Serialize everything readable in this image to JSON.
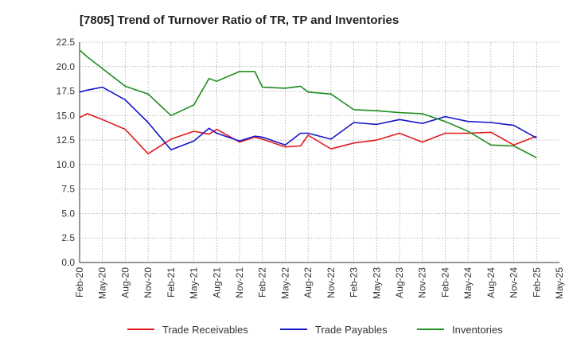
{
  "chart_data": {
    "type": "line",
    "title": "[7805]  Trend of Turnover Ratio of TR, TP and Inventories",
    "xlabel": "",
    "ylabel": "",
    "ylim": [
      0,
      22.5
    ],
    "yticks": [
      "0.0",
      "2.5",
      "5.0",
      "7.5",
      "10.0",
      "12.5",
      "15.0",
      "17.5",
      "20.0",
      "22.5"
    ],
    "xtick_labels": [
      "Feb-20",
      "May-20",
      "Aug-20",
      "Nov-20",
      "Feb-21",
      "May-21",
      "Aug-21",
      "Nov-21",
      "Feb-22",
      "May-22",
      "Aug-22",
      "Nov-22",
      "Feb-23",
      "May-23",
      "Aug-23",
      "Nov-23",
      "Feb-24",
      "May-24",
      "Aug-24",
      "Nov-24",
      "Feb-25",
      "May-25"
    ],
    "x": [
      "Feb-20",
      "Mar-20",
      "May-20",
      "Aug-20",
      "Nov-20",
      "Feb-21",
      "May-21",
      "Jul-21",
      "Aug-21",
      "Nov-21",
      "Jan-22",
      "Feb-22",
      "May-22",
      "Jul-22",
      "Aug-22",
      "Nov-22",
      "Feb-23",
      "May-23",
      "Aug-23",
      "Nov-23",
      "Feb-24",
      "May-24",
      "Aug-24",
      "Nov-24",
      "Feb-25"
    ],
    "grid": true,
    "legend_position": "bottom",
    "series": [
      {
        "name": "Trade Receivables",
        "color": "#e31a1c",
        "values": [
          14.8,
          15.2,
          14.6,
          13.6,
          11.1,
          12.6,
          13.4,
          13.1,
          13.6,
          12.3,
          12.8,
          12.6,
          11.8,
          11.9,
          13.0,
          11.6,
          12.2,
          12.5,
          13.2,
          12.3,
          13.2,
          13.2,
          13.3,
          12.0,
          12.9
        ]
      },
      {
        "name": "Trade Payables",
        "color": "#1515cc",
        "values": [
          17.4,
          17.6,
          17.9,
          16.6,
          14.3,
          11.5,
          12.4,
          13.7,
          13.2,
          12.4,
          12.9,
          12.8,
          12.0,
          13.2,
          13.2,
          12.6,
          14.3,
          14.1,
          14.6,
          14.2,
          14.9,
          14.4,
          14.3,
          14.0,
          12.7
        ]
      },
      {
        "name": "Inventories",
        "color": "#1e8c1e",
        "values": [
          21.7,
          21.0,
          19.8,
          18.0,
          17.2,
          15.0,
          16.1,
          18.8,
          18.5,
          19.5,
          19.5,
          17.9,
          17.8,
          18.0,
          17.4,
          17.2,
          15.6,
          15.5,
          15.3,
          15.2,
          14.4,
          13.4,
          12.0,
          11.9,
          10.7
        ]
      }
    ]
  }
}
